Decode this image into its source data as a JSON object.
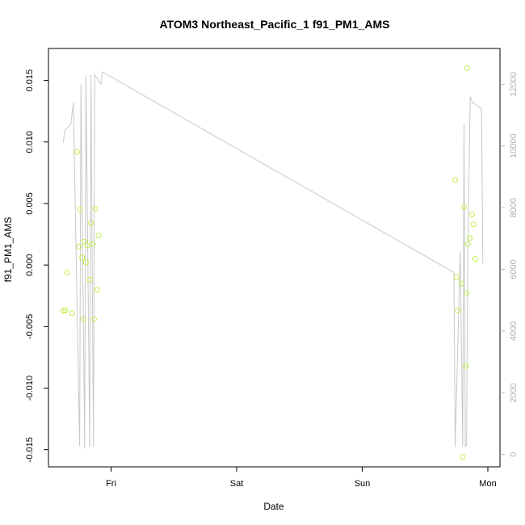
{
  "chart_data": {
    "type": "scatter",
    "title": "ATOM3 Northeast_Pacific_1 f91_PM1_AMS",
    "xlabel": "Date",
    "ylabel": "f91_PM1_AMS",
    "x_ticks": [
      {
        "label": "Fri",
        "day": 1.0
      },
      {
        "label": "Sat",
        "day": 2.0
      },
      {
        "label": "Sun",
        "day": 3.0
      },
      {
        "label": "Mon",
        "day": 4.0
      }
    ],
    "y_left": {
      "ylim": [
        -0.0164,
        0.0176
      ],
      "ticks": [
        "-0.015",
        "-0.010",
        "-0.005",
        "0.000",
        "0.005",
        "0.010",
        "0.015"
      ],
      "tick_values": [
        -0.015,
        -0.01,
        -0.005,
        0.0,
        0.005,
        0.01,
        0.015
      ]
    },
    "y_right": {
      "ylim": [
        -400,
        13160
      ],
      "ticks": [
        "0",
        "2000",
        "4000",
        "6000",
        "8000",
        "10000",
        "12000"
      ],
      "tick_values": [
        0,
        2000,
        4000,
        6000,
        8000,
        10000,
        12000
      ]
    },
    "grid": false,
    "colors": {
      "points": "#c0f04a",
      "altitude_line": "#c8c8c8",
      "right_axis": "#b8b8b8"
    },
    "series": [
      {
        "kind": "points",
        "axis": "left",
        "x_days": [
          0.62,
          0.635,
          0.65,
          0.69,
          0.73,
          0.745,
          0.755,
          0.77,
          0.78,
          0.79,
          0.8,
          0.81,
          0.83,
          0.84,
          0.855,
          0.865,
          0.875,
          0.89,
          0.9,
          3.74,
          3.75,
          3.76,
          3.79,
          3.8,
          3.81,
          3.825,
          3.83,
          3.835,
          3.84,
          3.855,
          3.875,
          3.885,
          3.9
        ],
        "values": [
          -0.0037,
          -0.0037,
          -0.0006,
          -0.0039,
          0.0092,
          0.0015,
          0.0045,
          0.0006,
          -0.0044,
          0.0019,
          0.0002,
          0.0016,
          -0.0012,
          0.0034,
          0.0017,
          -0.0044,
          0.0046,
          -0.002,
          0.0024,
          0.0069,
          -0.001,
          -0.0037,
          -0.0015,
          -0.0156,
          0.0047,
          -0.0082,
          -0.0023,
          0.016,
          0.0017,
          0.0022,
          0.0041,
          0.0033,
          0.0005
        ]
      },
      {
        "kind": "line",
        "axis": "right",
        "x_days": [
          0.62,
          0.63,
          0.68,
          0.7,
          0.75,
          0.76,
          0.79,
          0.8,
          0.83,
          0.84,
          0.86,
          0.87,
          0.92,
          0.93,
          3.73,
          3.74,
          3.78,
          3.8,
          3.81,
          3.82,
          3.83,
          3.84,
          3.86,
          3.88,
          3.95,
          3.96
        ],
        "values": [
          10100,
          10500,
          10700,
          11400,
          270,
          12000,
          200,
          12300,
          250,
          12300,
          250,
          12300,
          12000,
          12400,
          5900,
          250,
          6600,
          250,
          10700,
          250,
          300,
          6300,
          11600,
          11400,
          11200,
          6200
        ]
      }
    ]
  }
}
